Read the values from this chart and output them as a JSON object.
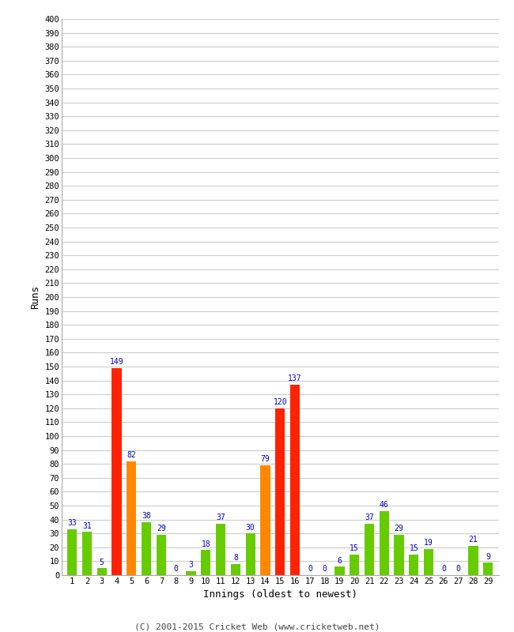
{
  "innings": [
    1,
    2,
    3,
    4,
    5,
    6,
    7,
    8,
    9,
    10,
    11,
    12,
    13,
    14,
    15,
    16,
    17,
    18,
    19,
    20,
    21,
    22,
    23,
    24,
    25,
    26,
    27,
    28,
    29
  ],
  "values": [
    33,
    31,
    5,
    149,
    82,
    38,
    29,
    0,
    3,
    18,
    37,
    8,
    30,
    79,
    120,
    137,
    0,
    0,
    6,
    15,
    37,
    46,
    29,
    15,
    19,
    0,
    0,
    21,
    9
  ],
  "colors": [
    "#66cc00",
    "#66cc00",
    "#66cc00",
    "#ff2200",
    "#ff8800",
    "#66cc00",
    "#66cc00",
    "#66cc00",
    "#66cc00",
    "#66cc00",
    "#66cc00",
    "#66cc00",
    "#66cc00",
    "#ff8800",
    "#ff2200",
    "#ff2200",
    "#66cc00",
    "#66cc00",
    "#66cc00",
    "#66cc00",
    "#66cc00",
    "#66cc00",
    "#66cc00",
    "#66cc00",
    "#66cc00",
    "#66cc00",
    "#66cc00",
    "#66cc00",
    "#66cc00"
  ],
  "xlabel": "Innings (oldest to newest)",
  "ylabel": "Runs",
  "ylim": [
    0,
    400
  ],
  "background_color": "#ffffff",
  "grid_color": "#cccccc",
  "label_color": "#0000cc",
  "footer": "(C) 2001-2015 Cricket Web (www.cricketweb.net)"
}
